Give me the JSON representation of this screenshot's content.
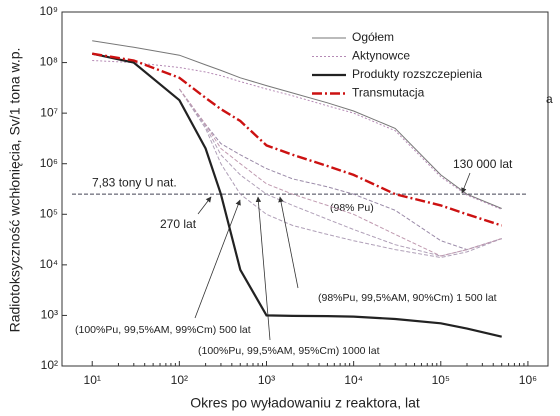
{
  "chart_data": {
    "type": "line",
    "x_label": "Okres po wyładowaniu z reaktora, lat",
    "y_label": "Radiotoksyczność wchłonięcia, Sv/1 tona w.p.",
    "log_x": true,
    "log_y": true,
    "xlim": [
      4.5,
      1700000
    ],
    "ylim": [
      100,
      1000000000
    ],
    "xticks": [
      {
        "value": 10,
        "label": "10¹"
      },
      {
        "value": 100,
        "label": "10²"
      },
      {
        "value": 1000,
        "label": "10³"
      },
      {
        "value": 10000,
        "label": "10⁴"
      },
      {
        "value": 100000,
        "label": "10⁵"
      },
      {
        "value": 1000000,
        "label": "10⁶"
      }
    ],
    "yticks": [
      {
        "value": 100,
        "label": "10²"
      },
      {
        "value": 1000,
        "label": "10³"
      },
      {
        "value": 10000,
        "label": "10⁴"
      },
      {
        "value": 100000,
        "label": "10⁵"
      },
      {
        "value": 1000000,
        "label": "10⁶"
      },
      {
        "value": 10000000,
        "label": "10⁷"
      },
      {
        "value": 100000000,
        "label": "10⁸"
      },
      {
        "value": 1000000000,
        "label": "10⁹"
      }
    ],
    "legend": "upper right",
    "x": [
      10,
      30,
      100,
      200,
      300,
      500,
      1000,
      2000,
      5000,
      10000,
      30000,
      100000,
      200000,
      500000
    ],
    "series": [
      {
        "name": "Ogółem",
        "color": "#777777",
        "values": [
          270000000,
          200000000,
          140000000,
          90000000,
          70000000,
          50000000,
          35000000,
          25000000,
          16000000,
          11000000,
          5000000,
          600000,
          250000,
          130000
        ]
      },
      {
        "name": "Aktynowce",
        "color": "#b58ab5",
        "values": [
          110000000,
          100000000,
          80000000,
          65000000,
          55000000,
          42000000,
          30000000,
          22000000,
          14000000,
          10000000,
          4500000,
          550000,
          240000,
          125000
        ]
      },
      {
        "name": "Produkty rozszczepienia",
        "color": "#222222",
        "values": [
          150000000,
          100000000,
          18000000,
          2000000,
          250000,
          8000,
          1000,
          980,
          970,
          950,
          850,
          700,
          550,
          380
        ]
      },
      {
        "name": "Transmutacja",
        "color": "#cc1111",
        "values": [
          150000000,
          110000000,
          50000000,
          20000000,
          12000000,
          7000000,
          2300000,
          1500000,
          900000,
          600000,
          250000,
          150000,
          100000,
          60000
        ]
      }
    ],
    "scenarios": [
      {
        "label": "(98% Pu)",
        "color": "#9a8aa8",
        "values": [
          null,
          null,
          30000000,
          6000000,
          2500000,
          1500000,
          800000,
          500000,
          350000,
          250000,
          120000,
          30000,
          20000,
          33000
        ]
      },
      {
        "label": "(100%Pu, 99,5%AM, 99%Cm) 500 lat",
        "color": "#b0a0b8",
        "values": [
          null,
          null,
          30000000,
          5000000,
          1000000,
          250000,
          100000,
          60000,
          40000,
          30000,
          20000,
          14000,
          18000,
          33000
        ]
      },
      {
        "label": "(100%Pu, 99,5%AM, 95%Cm) 1000 lat",
        "color": "#b0a0b8",
        "values": [
          null,
          null,
          30000000,
          5500000,
          1500000,
          600000,
          250000,
          150000,
          80000,
          50000,
          25000,
          15000,
          20000,
          33000
        ]
      },
      {
        "label": "(98%Pu, 99,5%AM, 90%Cm) 1 500 lat",
        "color": "#c09ab0",
        "values": [
          null,
          null,
          30000000,
          6000000,
          2000000,
          1000000,
          400000,
          250000,
          150000,
          100000,
          40000,
          15000,
          20000,
          33000
        ]
      }
    ],
    "reference_line": {
      "value": 250000,
      "label": "7,83 tony U nat."
    },
    "annotations": [
      "270 lat",
      "130 000 lat",
      "a"
    ]
  }
}
